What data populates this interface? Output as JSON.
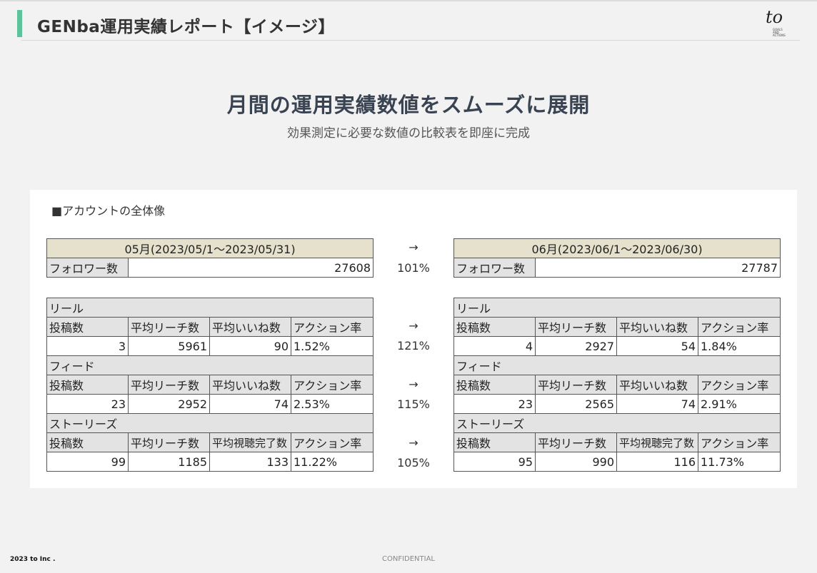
{
  "header": {
    "title": "GENba運用実績レポート【イメージ】",
    "logo_text": "to",
    "logo_tagline": [
      "GOALS",
      "AND",
      "ACTIONS"
    ]
  },
  "headline": "月間の運用実績数値をスムーズに展開",
  "subline": "効果測定に必要な数値の比較表を即座に完成",
  "section_title": "■アカウントの全体像",
  "arrow": "→",
  "left": {
    "period": "05月(2023/05/1～2023/05/31)",
    "follower_label": "フォロワー数",
    "follower_value": "27608",
    "blocks": [
      {
        "name": "リール",
        "headers": [
          "投稿数",
          "平均リーチ数",
          "平均いいね数",
          "アクション率"
        ],
        "values": [
          "3",
          "5961",
          "90",
          "1.52%"
        ]
      },
      {
        "name": "フィード",
        "headers": [
          "投稿数",
          "平均リーチ数",
          "平均いいね数",
          "アクション率"
        ],
        "values": [
          "23",
          "2952",
          "74",
          "2.53%"
        ]
      },
      {
        "name": "ストーリーズ",
        "headers": [
          "投稿数",
          "平均リーチ数",
          "平均視聴完了数",
          "アクション率"
        ],
        "values": [
          "99",
          "1185",
          "133",
          "11.22%"
        ]
      }
    ]
  },
  "right": {
    "period": "06月(2023/06/1～2023/06/30)",
    "follower_label": "フォロワー数",
    "follower_value": "27787",
    "blocks": [
      {
        "name": "リール",
        "headers": [
          "投稿数",
          "平均リーチ数",
          "平均いいね数",
          "アクション率"
        ],
        "values": [
          "4",
          "2927",
          "54",
          "1.84%"
        ]
      },
      {
        "name": "フィード",
        "headers": [
          "投稿数",
          "平均リーチ数",
          "平均いいね数",
          "アクション率"
        ],
        "values": [
          "23",
          "2565",
          "74",
          "2.91%"
        ]
      },
      {
        "name": "ストーリーズ",
        "headers": [
          "投稿数",
          "平均リーチ数",
          "平均視聴完了数",
          "アクション率"
        ],
        "values": [
          "95",
          "990",
          "116",
          "11.73%"
        ]
      }
    ]
  },
  "ratios": {
    "follower": "101%",
    "reel": "121%",
    "feed": "115%",
    "stories": "105%"
  },
  "footer": {
    "copyright": "2023 to Inc .",
    "confidential": "CONFIDENTIAL"
  }
}
